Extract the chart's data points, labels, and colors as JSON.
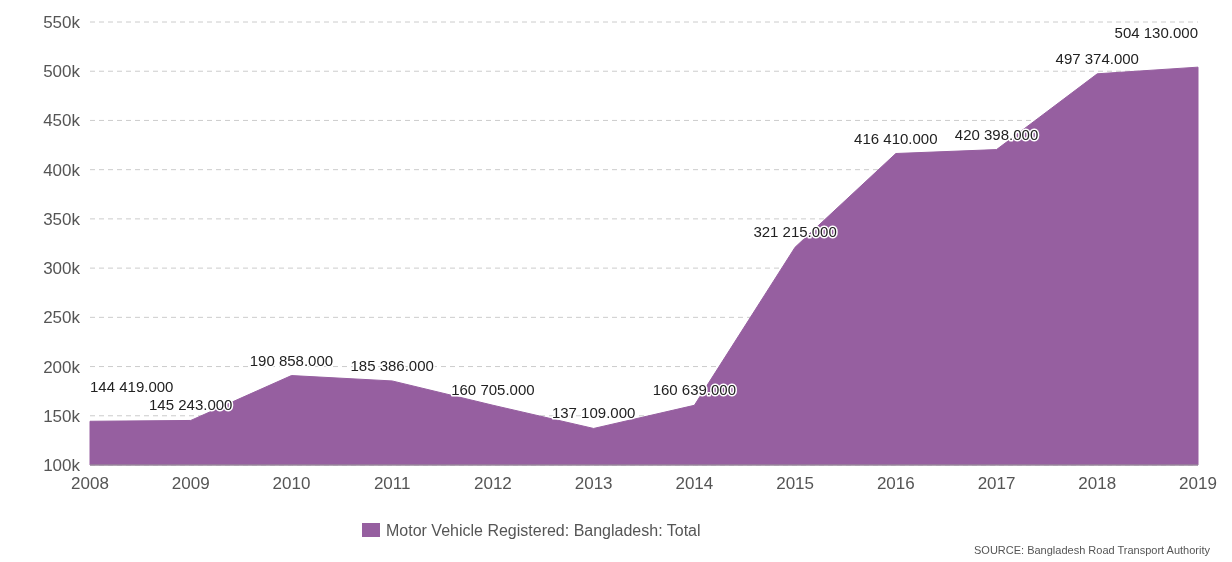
{
  "chart_data": {
    "type": "area",
    "x": [
      2008,
      2009,
      2010,
      2011,
      2012,
      2013,
      2014,
      2015,
      2016,
      2017,
      2018,
      2019
    ],
    "series": [
      {
        "name": "Motor Vehicle Registered: Bangladesh: Total",
        "color": "#965fa0",
        "values": [
          144419,
          145243,
          190858,
          185386,
          160705,
          137109,
          160639,
          321215,
          416410,
          420398,
          497374,
          504130
        ],
        "value_labels": [
          "144 419.000",
          "145 243.000",
          "190 858.000",
          "185 386.000",
          "160 705.000",
          "137 109.000",
          "160 639.000",
          "321 215.000",
          "416 410.000",
          "420 398.000",
          "497 374.000",
          "504 130.000"
        ]
      }
    ],
    "xlim": [
      2008,
      2019
    ],
    "xticks": [
      2008,
      2009,
      2010,
      2011,
      2012,
      2013,
      2014,
      2015,
      2016,
      2017,
      2018,
      2019
    ],
    "ylim": [
      100000,
      550000
    ],
    "yticks": [
      {
        "value": 100000,
        "label": "100k"
      },
      {
        "value": 150000,
        "label": "150k"
      },
      {
        "value": 200000,
        "label": "200k"
      },
      {
        "value": 250000,
        "label": "250k"
      },
      {
        "value": 300000,
        "label": "300k"
      },
      {
        "value": 350000,
        "label": "350k"
      },
      {
        "value": 400000,
        "label": "400k"
      },
      {
        "value": 450000,
        "label": "450k"
      },
      {
        "value": 500000,
        "label": "500k"
      },
      {
        "value": 550000,
        "label": "550k"
      }
    ],
    "grid": "y",
    "legend": "bottom",
    "annotations": [
      "SOURCE: Bangladesh Road Transport Authority"
    ]
  }
}
